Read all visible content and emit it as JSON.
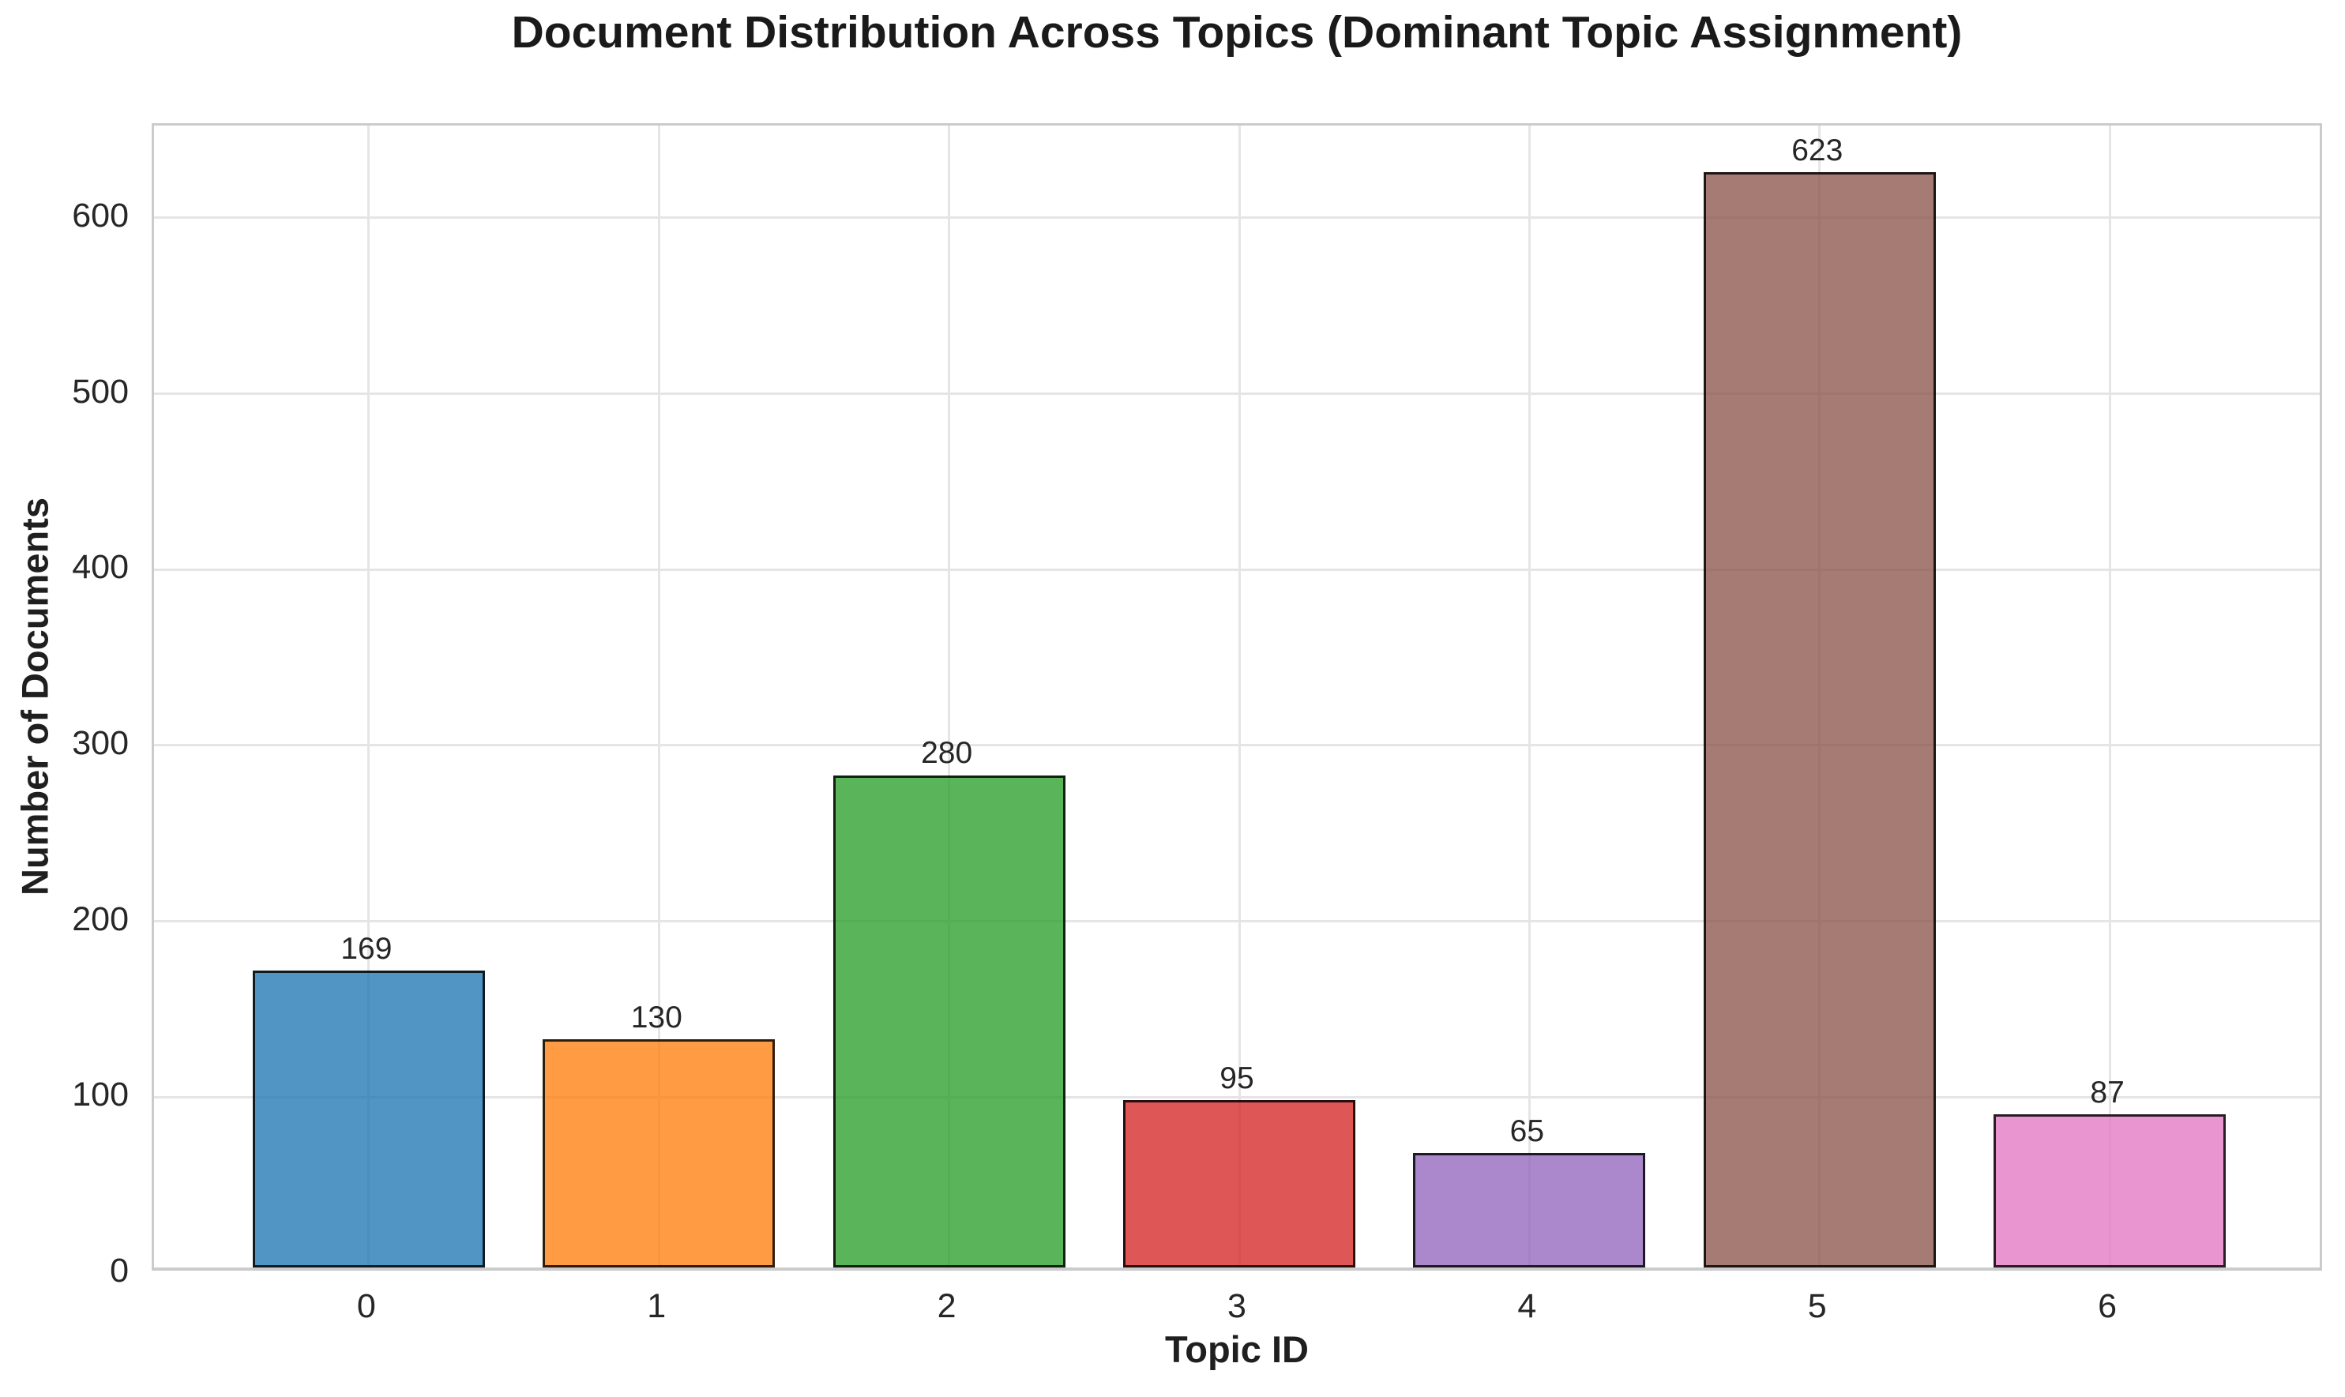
{
  "figure": {
    "background_color": "#ffffff"
  },
  "chart_data": {
    "type": "bar",
    "title": "Document Distribution Across Topics (Dominant Topic Assignment)",
    "xlabel": "Topic ID",
    "ylabel": "Number of Documents",
    "categories": [
      "0",
      "1",
      "2",
      "3",
      "4",
      "5",
      "6"
    ],
    "values": [
      169,
      130,
      280,
      95,
      65,
      623,
      87
    ],
    "value_labels": [
      "169",
      "130",
      "280",
      "95",
      "65",
      "623",
      "87"
    ],
    "yticks": [
      0,
      100,
      200,
      300,
      400,
      500,
      600
    ],
    "ytick_labels": [
      "0",
      "100",
      "200",
      "300",
      "400",
      "500",
      "600"
    ],
    "ylim": [
      0,
      652.5
    ],
    "xlim": [
      -0.74,
      6.74
    ],
    "bar_width_data_units": 0.8,
    "grid": true,
    "legend": "none",
    "bar_colors": [
      "rgba(31,119,180,0.78)",
      "rgba(255,127,14,0.78)",
      "rgba(44,160,44,0.78)",
      "rgba(214,39,40,0.78)",
      "rgba(148,103,189,0.78)",
      "rgba(140,86,75,0.78)",
      "rgba(227,119,194,0.78)"
    ],
    "bar_colors_rendered_hex": [
      "#5A9BC8",
      "#FAA455",
      "#6BBD6B",
      "#DD6466",
      "#AF8DCE",
      "#A98078",
      "#EC9DD6"
    ],
    "bar_edge_color": "rgba(0,0,0,0.82)",
    "grid_color": "#e5e5e5",
    "spine_color": "#cbcbcb",
    "text_color": "#262626",
    "title_color": "#1a1a1a"
  }
}
